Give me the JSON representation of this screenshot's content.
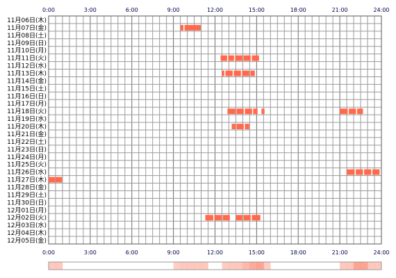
{
  "chart_data": {
    "type": "timeline",
    "x_ticks": [
      "0:00",
      "3:00",
      "6:00",
      "9:00",
      "12:00",
      "15:00",
      "18:00",
      "21:00",
      "24:00"
    ],
    "xlim": [
      0,
      24
    ],
    "bar_color": "#ff6a4d",
    "grid": true,
    "rows": [
      "11月06日(木)",
      "11月07日(金)",
      "11月08日(土)",
      "11月09日(日)",
      "11月10日(月)",
      "11月11日(火)",
      "11月12日(水)",
      "11月13日(木)",
      "11月14日(金)",
      "11月15日(土)",
      "11月16日(日)",
      "11月17日(月)",
      "11月18日(火)",
      "11月19日(水)",
      "11月20日(木)",
      "11月21日(金)",
      "11月22日(土)",
      "11月23日(日)",
      "11月24日(月)",
      "11月25日(火)",
      "11月26日(水)",
      "11月27日(木)",
      "11月28日(金)",
      "11月29日(土)",
      "11月30日(日)",
      "12月01日(月)",
      "12月02日(火)",
      "12月03日(水)",
      "12月04日(木)",
      "12月05日(金)"
    ],
    "intervals": [
      {
        "row": 1,
        "segments": [
          [
            9.5,
            9.75
          ],
          [
            9.8,
            11.0
          ]
        ]
      },
      {
        "row": 5,
        "segments": [
          [
            12.4,
            12.9
          ],
          [
            12.95,
            13.4
          ],
          [
            13.45,
            14.0
          ],
          [
            14.05,
            14.6
          ],
          [
            14.65,
            15.2
          ]
        ]
      },
      {
        "row": 7,
        "segments": [
          [
            12.5,
            12.7
          ],
          [
            12.75,
            13.3
          ],
          [
            13.35,
            13.9
          ],
          [
            13.95,
            14.5
          ],
          [
            14.55,
            14.9
          ]
        ]
      },
      {
        "row": 12,
        "segments": [
          [
            12.9,
            13.5
          ],
          [
            13.55,
            14.1
          ],
          [
            14.15,
            14.7
          ],
          [
            14.75,
            15.1
          ],
          [
            15.35,
            15.6
          ]
        ]
      },
      {
        "row": 12,
        "segments": [
          [
            21.0,
            21.6
          ],
          [
            21.65,
            22.2
          ],
          [
            22.25,
            22.7
          ]
        ]
      },
      {
        "row": 14,
        "segments": [
          [
            13.2,
            13.5
          ],
          [
            13.55,
            14.1
          ],
          [
            14.15,
            14.5
          ]
        ]
      },
      {
        "row": 20,
        "segments": [
          [
            21.5,
            22.1
          ],
          [
            22.15,
            22.7
          ],
          [
            22.75,
            23.3
          ],
          [
            23.35,
            23.9
          ]
        ]
      },
      {
        "row": 21,
        "segments": [
          [
            0.0,
            0.5
          ],
          [
            0.5,
            1.0
          ]
        ]
      },
      {
        "row": 26,
        "segments": [
          [
            11.3,
            11.9
          ],
          [
            11.95,
            12.5
          ],
          [
            12.55,
            13.1
          ],
          [
            13.5,
            14.0
          ],
          [
            14.05,
            14.6
          ],
          [
            14.65,
            15.3
          ]
        ]
      }
    ],
    "density_strip": {
      "bins_per_hour": 2,
      "values": [
        1,
        1,
        0,
        0,
        0,
        0,
        0,
        0,
        0,
        0,
        0,
        0,
        0,
        0,
        0,
        0,
        0,
        0,
        0.8,
        1,
        1,
        1,
        1,
        0,
        0,
        0.9,
        1,
        1,
        1.4,
        1.8,
        2,
        0.9,
        0,
        0,
        0,
        0,
        0,
        0,
        0,
        0,
        0,
        0,
        1,
        1,
        2,
        2,
        1,
        1
      ]
    }
  }
}
